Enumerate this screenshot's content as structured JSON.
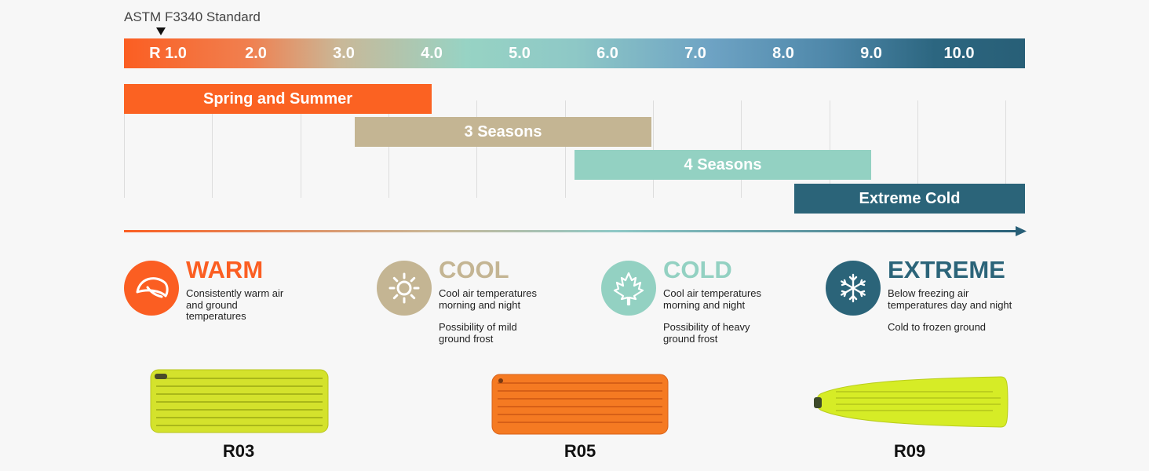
{
  "standard": {
    "label": "ASTM F3340 Standard"
  },
  "scale": {
    "ticks": [
      "R 1.0",
      "2.0",
      "3.0",
      "4.0",
      "5.0",
      "6.0",
      "7.0",
      "8.0",
      "9.0",
      "10.0"
    ],
    "range": [
      0.5,
      10.75
    ]
  },
  "seasons": [
    {
      "label": "Spring and Summer",
      "start": 0.5,
      "end": 4.0,
      "color": "#fb6222"
    },
    {
      "label": "3 Seasons",
      "start": 3.125,
      "end": 6.5,
      "color": "#c4b593"
    },
    {
      "label": "4 Seasons",
      "start": 5.625,
      "end": 9.0,
      "color": "#93d1c2"
    },
    {
      "label": "Extreme Cold",
      "start": 8.125,
      "end": 10.75,
      "color": "#2b6479"
    }
  ],
  "categories": [
    {
      "title": "WARM",
      "color": "#fb5e22",
      "icon": "leaf-icon",
      "desc": [
        "Consistently warm air\nand ground\ntemperatures"
      ]
    },
    {
      "title": "COOL",
      "color": "#c4b593",
      "icon": "sun-icon",
      "desc": [
        "Cool air temperatures\nmorning and night",
        "Possibility of mild\nground frost"
      ]
    },
    {
      "title": "COLD",
      "color": "#93d1c2",
      "icon": "maple-leaf-icon",
      "desc": [
        "Cool air temperatures\nmorning and night",
        "Possibility of heavy\nground frost"
      ]
    },
    {
      "title": "EXTREME",
      "color": "#2b6479",
      "icon": "snowflake-icon",
      "desc": [
        "Below freezing air\ntemperatures day and night",
        "Cold to frozen ground"
      ]
    }
  ],
  "products": [
    {
      "label": "R03",
      "color": "#d4e22c"
    },
    {
      "label": "R05",
      "color": "#f57a22"
    },
    {
      "label": "R09",
      "color": "#d6ec26"
    }
  ]
}
